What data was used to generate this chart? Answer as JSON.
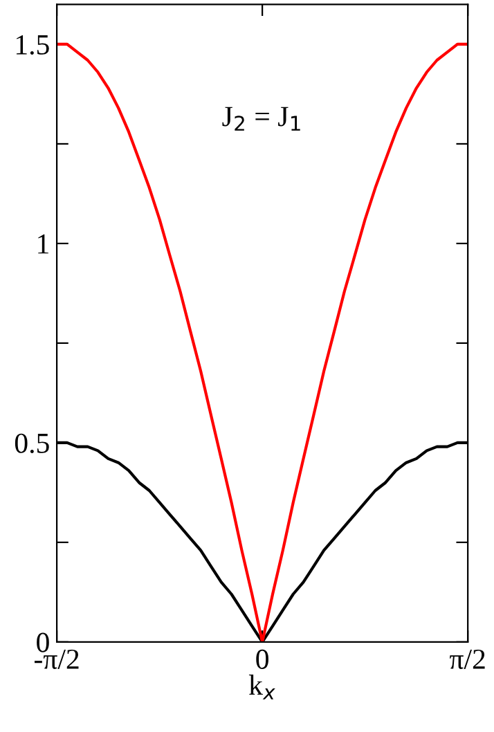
{
  "chart_data": {
    "type": "line",
    "xlabel": "k$_{x}$",
    "annotations": [
      "J$_{2}$ = J$_{1}$"
    ],
    "x": [
      -1.571,
      -1.492,
      -1.414,
      -1.335,
      -1.257,
      -1.178,
      -1.1,
      -1.021,
      -0.942,
      -0.864,
      -0.785,
      -0.707,
      -0.628,
      -0.55,
      -0.471,
      -0.393,
      -0.314,
      -0.236,
      -0.157,
      -0.079,
      0,
      0.079,
      0.157,
      0.236,
      0.314,
      0.393,
      0.471,
      0.55,
      0.628,
      0.707,
      0.785,
      0.864,
      0.942,
      1.021,
      1.1,
      1.178,
      1.257,
      1.335,
      1.414,
      1.492,
      1.571
    ],
    "series": [
      {
        "color": "#000000",
        "values": [
          0.5,
          0.5,
          0.49,
          0.49,
          0.48,
          0.46,
          0.45,
          0.43,
          0.4,
          0.38,
          0.35,
          0.32,
          0.29,
          0.26,
          0.23,
          0.19,
          0.15,
          0.12,
          0.08,
          0.04,
          0,
          0.04,
          0.08,
          0.12,
          0.15,
          0.19,
          0.23,
          0.26,
          0.29,
          0.32,
          0.35,
          0.38,
          0.4,
          0.43,
          0.45,
          0.46,
          0.48,
          0.49,
          0.49,
          0.5,
          0.5
        ]
      },
      {
        "color": "#ff0000",
        "values": [
          1.5,
          1.5,
          1.48,
          1.46,
          1.43,
          1.39,
          1.34,
          1.28,
          1.21,
          1.14,
          1.06,
          0.97,
          0.88,
          0.78,
          0.68,
          0.57,
          0.46,
          0.35,
          0.23,
          0.12,
          0,
          0.12,
          0.23,
          0.35,
          0.46,
          0.57,
          0.68,
          0.78,
          0.88,
          0.97,
          1.06,
          1.14,
          1.21,
          1.28,
          1.34,
          1.39,
          1.43,
          1.46,
          1.48,
          1.5,
          1.5
        ]
      }
    ],
    "xlim": [
      -1.571,
      1.571
    ],
    "ylim": [
      0,
      1.6
    ],
    "xticks": [
      {
        "value": -1.571,
        "label": "-π/2"
      },
      0,
      {
        "value": 1.571,
        "label": "π/2"
      }
    ],
    "yticks": [
      0,
      {
        "value": 0.25,
        "label": null
      },
      0.5,
      {
        "value": 0.75,
        "label": null
      },
      1,
      {
        "value": 1.25,
        "label": null
      },
      1.5
    ],
    "grid": false,
    "legend": false
  }
}
